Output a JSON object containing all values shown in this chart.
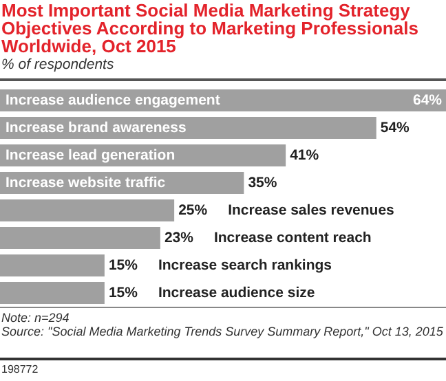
{
  "chart_data": {
    "type": "bar",
    "orientation": "horizontal",
    "title": "Most Important Social Media Marketing Strategy Objectives According to Marketing Professionals Worldwide, Oct 2015",
    "subtitle": "% of respondents",
    "categories": [
      "Increase audience engagement",
      "Increase brand awareness",
      "Increase lead generation",
      "Increase website traffic",
      "Increase sales revenues",
      "Increase content reach",
      "Increase search rankings",
      "Increase audience size"
    ],
    "values": [
      64,
      54,
      41,
      35,
      25,
      23,
      15,
      15
    ],
    "value_labels": [
      "64%",
      "54%",
      "41%",
      "35%",
      "25%",
      "23%",
      "15%",
      "15%"
    ],
    "color": "#a0a0a0",
    "annotations": [
      "Note: n=294",
      "Source: \"Social Media Marketing Trends Survey Summary Report,\" Oct 13, 2015",
      "198772"
    ]
  }
}
